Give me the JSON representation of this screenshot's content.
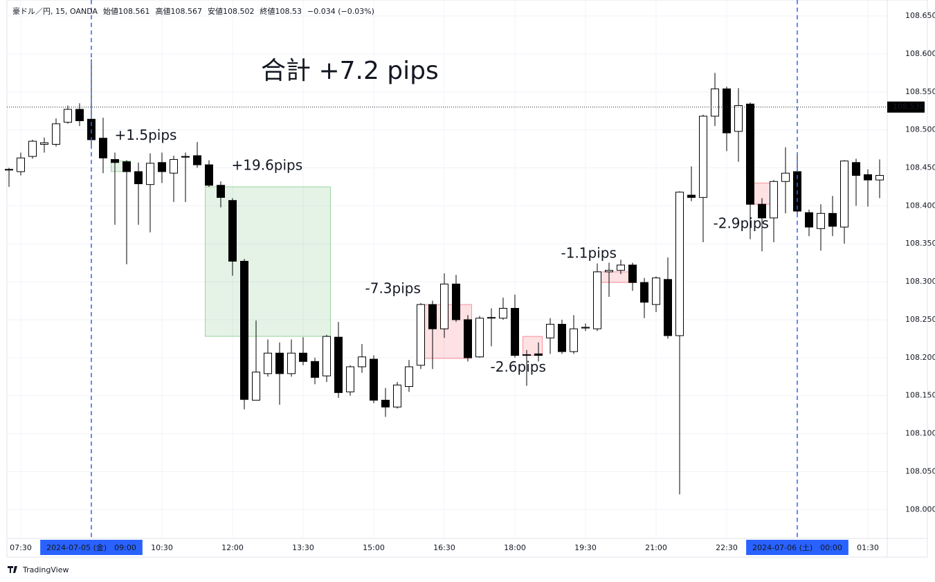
{
  "chart_data": {
    "type": "candlestick",
    "symbol": "豪ドル／円, 15, OANDA",
    "legend_ohlc": [
      {
        "label": "始値",
        "value": 108.561
      },
      {
        "label": "高値",
        "value": 108.567
      },
      {
        "label": "安値",
        "value": 108.502
      },
      {
        "label": "終値",
        "value": 108.53
      }
    ],
    "change": "−0.034 (−0.03%)",
    "title": "合計 +7.2 pips",
    "footer": "TradingView",
    "categories": [
      null,
      "07:30",
      null,
      null,
      null,
      null,
      null,
      "2024-07-05 (金)　09:00",
      null,
      null,
      null,
      null,
      null,
      "10:30",
      null,
      null,
      null,
      null,
      null,
      "12:00",
      null,
      null,
      null,
      null,
      null,
      "13:30",
      null,
      null,
      null,
      null,
      null,
      "15:00",
      null,
      null,
      null,
      null,
      null,
      "16:30",
      null,
      null,
      null,
      null,
      null,
      "18:00",
      null,
      null,
      null,
      null,
      null,
      "19:30",
      null,
      null,
      null,
      null,
      null,
      "21:00",
      null,
      null,
      null,
      null,
      null,
      "22:30",
      null,
      null,
      null,
      null,
      null,
      "2024-07-06 (土)　00:00",
      null,
      null,
      null,
      null,
      null,
      "01:30",
      null
    ],
    "session_breaks": [
      7,
      67
    ],
    "open": [
      108.447,
      108.445,
      108.465,
      108.481,
      108.481,
      108.51,
      108.527,
      108.514,
      108.489,
      108.461,
      108.458,
      108.445,
      108.428,
      108.457,
      108.443,
      108.465,
      108.466,
      108.454,
      108.427,
      108.407,
      108.327,
      108.144,
      108.179,
      108.206,
      108.179,
      108.206,
      108.195,
      108.176,
      108.227,
      108.155,
      108.188,
      108.198,
      108.144,
      108.135,
      108.162,
      108.19,
      108.27,
      108.238,
      108.297,
      108.25,
      108.201,
      108.252,
      108.252,
      108.265,
      108.203,
      108.205,
      108.226,
      108.244,
      108.208,
      108.239,
      108.238,
      108.313,
      108.315,
      108.322,
      108.299,
      108.27,
      108.303,
      108.229,
      108.414,
      108.411,
      108.518,
      108.554,
      108.498,
      108.534,
      108.402,
      108.384,
      108.432,
      108.445,
      108.391,
      108.37,
      108.39,
      108.372,
      108.457,
      108.441,
      108.434
    ],
    "high": [
      108.45,
      108.47,
      108.487,
      108.49,
      108.515,
      108.532,
      108.535,
      108.593,
      108.516,
      108.47,
      108.46,
      108.457,
      108.469,
      108.47,
      108.466,
      108.47,
      108.484,
      108.46,
      108.432,
      108.41,
      108.33,
      108.249,
      108.224,
      108.22,
      108.224,
      108.227,
      108.2,
      108.23,
      108.247,
      108.19,
      108.218,
      108.203,
      108.16,
      108.168,
      108.197,
      108.272,
      108.275,
      108.311,
      108.309,
      108.256,
      108.255,
      108.265,
      108.279,
      108.283,
      108.21,
      108.22,
      108.252,
      108.25,
      108.256,
      108.245,
      108.324,
      108.325,
      108.329,
      108.325,
      108.305,
      108.307,
      108.332,
      108.419,
      108.452,
      108.52,
      108.575,
      108.557,
      108.555,
      108.536,
      108.41,
      108.434,
      108.477,
      108.47,
      108.395,
      108.402,
      108.413,
      108.46,
      108.462,
      108.448,
      108.461
    ],
    "low": [
      108.425,
      108.44,
      108.462,
      108.47,
      108.478,
      108.508,
      108.505,
      108.48,
      108.443,
      108.375,
      108.323,
      108.375,
      108.365,
      108.43,
      108.405,
      108.405,
      108.45,
      108.425,
      108.398,
      108.308,
      108.132,
      108.144,
      108.175,
      108.138,
      108.175,
      108.19,
      108.165,
      108.168,
      108.147,
      108.15,
      108.18,
      108.14,
      108.122,
      108.133,
      108.155,
      108.185,
      108.185,
      108.226,
      108.247,
      108.195,
      108.2,
      108.215,
      108.25,
      108.2,
      108.163,
      108.195,
      108.205,
      108.205,
      108.205,
      108.235,
      108.235,
      108.28,
      108.31,
      108.288,
      108.252,
      108.26,
      108.225,
      108.02,
      108.406,
      108.352,
      108.505,
      108.472,
      108.458,
      108.356,
      108.34,
      108.352,
      108.39,
      108.39,
      108.36,
      108.341,
      108.36,
      108.35,
      108.4,
      108.399,
      108.41
    ],
    "close": [
      108.448,
      108.463,
      108.485,
      108.483,
      108.508,
      108.527,
      108.512,
      108.487,
      108.463,
      108.457,
      108.445,
      108.429,
      108.456,
      108.445,
      108.461,
      108.464,
      108.454,
      108.427,
      108.411,
      108.327,
      108.145,
      108.181,
      108.206,
      108.179,
      108.206,
      108.195,
      108.174,
      108.228,
      108.154,
      108.188,
      108.201,
      108.144,
      108.135,
      108.164,
      108.188,
      108.27,
      108.238,
      108.297,
      108.25,
      108.2,
      108.252,
      108.253,
      108.265,
      108.203,
      108.204,
      108.203,
      108.244,
      108.208,
      108.238,
      108.24,
      108.313,
      108.315,
      108.322,
      108.299,
      108.273,
      108.305,
      108.229,
      108.418,
      108.411,
      108.518,
      108.554,
      108.496,
      108.532,
      108.402,
      108.384,
      108.432,
      108.443,
      108.393,
      108.372,
      108.39,
      108.373,
      108.459,
      108.44,
      108.434,
      108.44
    ],
    "up_color": "#ffffff",
    "down_color": "#000000",
    "last_price": {
      "value": 108.53,
      "label": "108.530"
    },
    "ylim": [
      107.962,
      108.671
    ],
    "yticks": [
      {
        "value": 108.65,
        "label": "108.650"
      },
      {
        "value": 108.6,
        "label": "108.600"
      },
      {
        "value": 108.55,
        "label": "108.550"
      },
      {
        "value": 108.5,
        "label": "108.500"
      },
      {
        "value": 108.45,
        "label": "108.450"
      },
      {
        "value": 108.4,
        "label": "108.400"
      },
      {
        "value": 108.35,
        "label": "108.350"
      },
      {
        "value": 108.3,
        "label": "108.300"
      },
      {
        "value": 108.25,
        "label": "108.250"
      },
      {
        "value": 108.2,
        "label": "108.200"
      },
      {
        "value": 108.15,
        "label": "108.150"
      },
      {
        "value": 108.1,
        "label": "108.100"
      },
      {
        "value": 108.05,
        "label": "108.050"
      },
      {
        "value": 108.0,
        "label": "108.000"
      }
    ],
    "grid": true,
    "zones": [
      {
        "label": "+1.5pips",
        "bars": [
          9,
          10
        ],
        "top": 108.459,
        "bottom": 108.445,
        "color": "#4caf50",
        "label_color": "#1ab0cf"
      },
      {
        "label": "+19.6pips",
        "bars": [
          17,
          27
        ],
        "top": 108.425,
        "bottom": 108.228,
        "color": "#4caf50",
        "label_color": "#1ab0cf"
      },
      {
        "label": "-7.3pips",
        "bars": [
          35,
          39
        ],
        "top": 108.27,
        "bottom": 108.199,
        "color": "#f23645",
        "label_color": "#f23645"
      },
      {
        "label": "-2.6pips",
        "bars": [
          44,
          45
        ],
        "top": 108.228,
        "bottom": 108.203,
        "color": "#f23645",
        "label_color": "#f23645"
      },
      {
        "label": "-1.1pips",
        "bars": [
          50,
          53
        ],
        "top": 108.313,
        "bottom": 108.299,
        "color": "#f23645",
        "label_color": "#f23645"
      },
      {
        "label": "-2.9pips",
        "bars": [
          63,
          65
        ],
        "top": 108.43,
        "bottom": 108.402,
        "color": "#f23645",
        "label_color": "#f23645"
      }
    ]
  }
}
